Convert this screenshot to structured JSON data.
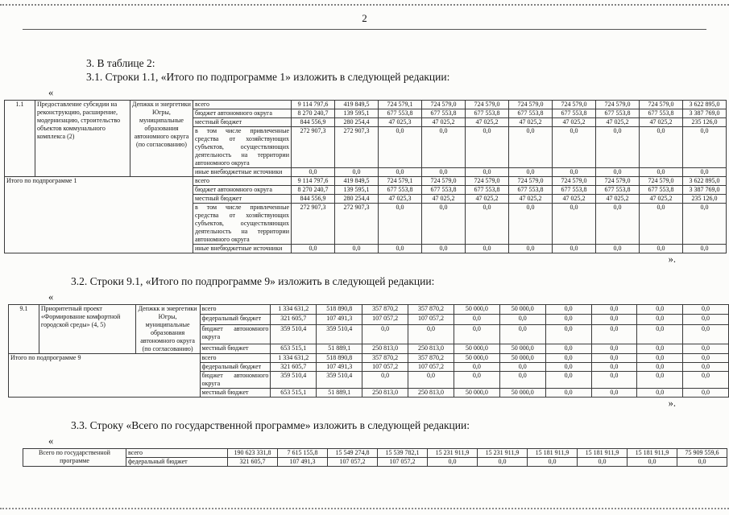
{
  "page": {
    "number": "2"
  },
  "text": {
    "section3": "3. В таблице 2:",
    "section31": "3.1. Строки 1.1, «Итого по подпрограмме 1» изложить в следующей редакции:",
    "section32": "3.2. Строки 9.1, «Итого по подпрограмме 9» изложить в следующей редакции:",
    "section33": "3.3. Строку «Всего по государственной программе» изложить в следующей редакции:",
    "open_quote": "«",
    "close_quote": "»."
  },
  "tables": [
    {
      "name": "table-subprogram-1",
      "groups": [
        {
          "head": [
            {
              "text": "1.1",
              "cls": "num",
              "name": "row-number-cell"
            },
            {
              "text": "Предоставление субсидии на реконструкцию, расширение, модернизацию, строительство объектов коммунального комплекса (2)",
              "cls": "pname",
              "name": "program-name-cell"
            },
            {
              "text": "Депжкк и энергетики Югры, муниципальные образования автономного округа (по согласованию)",
              "cls": "exec",
              "name": "executor-cell"
            }
          ],
          "rows": [
            {
              "label": "всего",
              "values": [
                "9 114 797,6",
                "419 849,5",
                "724 579,1",
                "724 579,0",
                "724 579,0",
                "724 579,0",
                "724 579,0",
                "724 579,0",
                "724 579,0",
                "3 622 895,0"
              ]
            },
            {
              "label": "бюджет автономного округа",
              "values": [
                "8 270 240,7",
                "139 595,1",
                "677 553,8",
                "677 553,8",
                "677 553,8",
                "677 553,8",
                "677 553,8",
                "677 553,8",
                "677 553,8",
                "3 387 769,0"
              ]
            },
            {
              "label": "местный бюджет",
              "values": [
                "844 556,9",
                "280 254,4",
                "47 025,3",
                "47 025,2",
                "47 025,2",
                "47 025,2",
                "47 025,2",
                "47 025,2",
                "47 025,2",
                "235 126,0"
              ]
            },
            {
              "label": "в том числе привлеченные средства от хозяйствующих субъектов, осуществляющих деятельность на территории автономного округа",
              "values": [
                "272 907,3",
                "272 907,3",
                "0,0",
                "0,0",
                "0,0",
                "0,0",
                "0,0",
                "0,0",
                "0,0",
                "0,0"
              ]
            },
            {
              "label": "иные внебюджетные источники",
              "values": [
                "0,0",
                "0,0",
                "0,0",
                "0,0",
                "0,0",
                "0,0",
                "0,0",
                "0,0",
                "0,0",
                "0,0"
              ]
            }
          ]
        },
        {
          "head": [
            {
              "text": "Итого по подпрограмме 1",
              "cls": "total",
              "name": "subtotal-label-cell",
              "colspan": 3
            }
          ],
          "rows": [
            {
              "label": "всего",
              "values": [
                "9 114 797,6",
                "419 849,5",
                "724 579,1",
                "724 579,0",
                "724 579,0",
                "724 579,0",
                "724 579,0",
                "724 579,0",
                "724 579,0",
                "3 622 895,0"
              ]
            },
            {
              "label": "бюджет автономного округа",
              "values": [
                "8 270 240,7",
                "139 595,1",
                "677 553,8",
                "677 553,8",
                "677 553,8",
                "677 553,8",
                "677 553,8",
                "677 553,8",
                "677 553,8",
                "3 387 769,0"
              ]
            },
            {
              "label": "местный бюджет",
              "values": [
                "844 556,9",
                "280 254,4",
                "47 025,3",
                "47 025,2",
                "47 025,2",
                "47 025,2",
                "47 025,2",
                "47 025,2",
                "47 025,2",
                "235 126,0"
              ]
            },
            {
              "label": "в том числе привлеченные средства от хозяйствующих субъектов, осуществляющих деятельность на территории автономного округа",
              "values": [
                "272 907,3",
                "272 907,3",
                "0,0",
                "0,0",
                "0,0",
                "0,0",
                "0,0",
                "0,0",
                "0,0",
                "0,0"
              ]
            },
            {
              "label": "иные внебюджетные источники",
              "values": [
                "0,0",
                "0,0",
                "0,0",
                "0,0",
                "0,0",
                "0,0",
                "0,0",
                "0,0",
                "0,0",
                "0,0"
              ]
            }
          ]
        }
      ]
    },
    {
      "name": "table-subprogram-9",
      "groups": [
        {
          "head": [
            {
              "text": "9.1",
              "cls": "num",
              "name": "row-number-cell"
            },
            {
              "text": "Приоритетный проект «Формирование комфортной городской среды» (4, 5)",
              "cls": "pname",
              "name": "program-name-cell"
            },
            {
              "text": "Депжкк и энергетики Югры, муниципальные образования автономного округа (по согласованию)",
              "cls": "exec",
              "name": "executor-cell"
            }
          ],
          "rows": [
            {
              "label": "всего",
              "values": [
                "1 334 631,2",
                "518 890,8",
                "357 870,2",
                "357 870,2",
                "50 000,0",
                "50 000,0",
                "0,0",
                "0,0",
                "0,0",
                "0,0"
              ]
            },
            {
              "label": "федеральный бюджет",
              "values": [
                "321 605,7",
                "107 491,3",
                "107 057,2",
                "107 057,2",
                "0,0",
                "0,0",
                "0,0",
                "0,0",
                "0,0",
                "0,0"
              ]
            },
            {
              "label": "бюджет автономного округа",
              "values": [
                "359 510,4",
                "359 510,4",
                "0,0",
                "0,0",
                "0,0",
                "0,0",
                "0,0",
                "0,0",
                "0,0",
                "0,0"
              ]
            },
            {
              "label": "местный бюджет",
              "values": [
                "653 515,1",
                "51 889,1",
                "250 813,0",
                "250 813,0",
                "50 000,0",
                "50 000,0",
                "0,0",
                "0,0",
                "0,0",
                "0,0"
              ]
            }
          ]
        },
        {
          "head": [
            {
              "text": "Итого по подпрограмме 9",
              "cls": "total",
              "name": "subtotal-label-cell",
              "colspan": 3
            }
          ],
          "rows": [
            {
              "label": "всего",
              "values": [
                "1 334 631,2",
                "518 890,8",
                "357 870,2",
                "357 870,2",
                "50 000,0",
                "50 000,0",
                "0,0",
                "0,0",
                "0,0",
                "0,0"
              ]
            },
            {
              "label": "федеральный бюджет",
              "values": [
                "321 605,7",
                "107 491,3",
                "107 057,2",
                "107 057,2",
                "0,0",
                "0,0",
                "0,0",
                "0,0",
                "0,0",
                "0,0"
              ]
            },
            {
              "label": "бюджет автономного округа",
              "values": [
                "359 510,4",
                "359 510,4",
                "0,0",
                "0,0",
                "0,0",
                "0,0",
                "0,0",
                "0,0",
                "0,0",
                "0,0"
              ]
            },
            {
              "label": "местный бюджет",
              "values": [
                "653 515,1",
                "51 889,1",
                "250 813,0",
                "250 813,0",
                "50 000,0",
                "50 000,0",
                "0,0",
                "0,0",
                "0,0",
                "0,0"
              ]
            }
          ]
        }
      ]
    },
    {
      "name": "table-state-program-total",
      "groups": [
        {
          "head": [
            {
              "text": "Всего по государственной программе",
              "cls": "grand",
              "name": "grand-total-label-cell"
            }
          ],
          "rows": [
            {
              "label": "всего",
              "values": [
                "190 623 331,8",
                "7 615 155,8",
                "15 549 274,8",
                "15 539 782,1",
                "15 231 911,9",
                "15 231 911,9",
                "15 181 911,9",
                "15 181 911,9",
                "15 181 911,9",
                "75 909 559,6"
              ]
            },
            {
              "label": "федеральный бюджет",
              "values": [
                "321 605,7",
                "107 491,3",
                "107 057,2",
                "107 057,2",
                "0,0",
                "0,0",
                "0,0",
                "0,0",
                "0,0",
                "0,0"
              ]
            }
          ]
        }
      ]
    }
  ]
}
